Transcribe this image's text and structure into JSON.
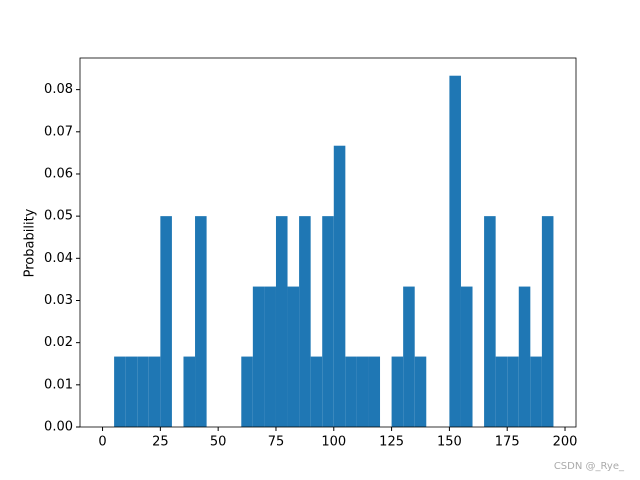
{
  "chart_data": {
    "type": "histogram",
    "ylabel": "Probability",
    "color": "#1f77b4",
    "bins": [
      0,
      5,
      10,
      15,
      20,
      25,
      30,
      35,
      40,
      45,
      50,
      55,
      60,
      65,
      70,
      75,
      80,
      85,
      90,
      95,
      100,
      105,
      110,
      115,
      120,
      125,
      130,
      135,
      140,
      145,
      150,
      155,
      160,
      165,
      170,
      175,
      180,
      185,
      190,
      195
    ],
    "values": [
      0,
      0.0167,
      0.0167,
      0.0167,
      0.0167,
      0.05,
      0,
      0.0167,
      0.05,
      0,
      0,
      0,
      0.0167,
      0.0333,
      0.0333,
      0.05,
      0.0333,
      0.05,
      0.0167,
      0.05,
      0.0667,
      0.0167,
      0.0167,
      0.0167,
      0,
      0.0167,
      0.0333,
      0.0167,
      0,
      0,
      0.0833,
      0.0333,
      0,
      0.05,
      0.0167,
      0.0167,
      0.0333,
      0.0167,
      0.05
    ],
    "xlim": [
      -9.75,
      204.75
    ],
    "xticks": [
      0,
      25,
      50,
      75,
      100,
      125,
      150,
      175,
      200
    ],
    "ylim": [
      0,
      0.0875
    ],
    "yticks": [
      {
        "value": 0,
        "label": "0.00"
      },
      {
        "value": 0.01,
        "label": "0.01"
      },
      {
        "value": 0.02,
        "label": "0.02"
      },
      {
        "value": 0.03,
        "label": "0.03"
      },
      {
        "value": 0.04,
        "label": "0.04"
      },
      {
        "value": 0.05,
        "label": "0.05"
      },
      {
        "value": 0.06,
        "label": "0.06"
      },
      {
        "value": 0.07,
        "label": "0.07"
      },
      {
        "value": 0.08,
        "label": "0.08"
      }
    ]
  },
  "watermark": "CSDN @_Rye_"
}
